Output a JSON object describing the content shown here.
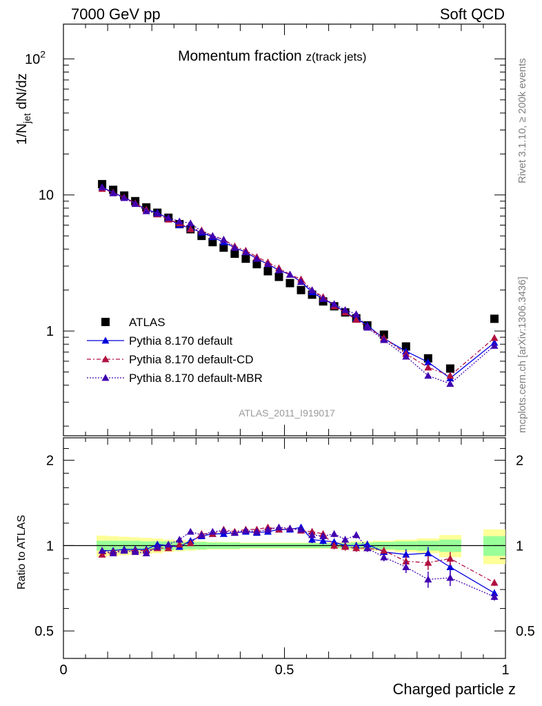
{
  "header": {
    "left": "7000 GeV pp",
    "right": "Soft QCD"
  },
  "side_labels": {
    "rivet": "Rivet 3.1.10, ≥ 200k events",
    "source": "mcplots.cern.ch [arXiv:1306.3436]"
  },
  "colors": {
    "data": "#000000",
    "default": "#0000dd",
    "cd": "#b01040",
    "mbr": "#4000b0",
    "band_inner": "#99ff99",
    "band_outer": "#ffff99",
    "watermark": "#999999"
  },
  "chart_data": {
    "type": "scatter",
    "title_main": "Momentum fraction ",
    "title_sub": "z(track jets)",
    "ylabel_main": "1/N",
    "ylabel_sub": "jet",
    "ylabel_rest": " dN/dz",
    "ratio_ylabel": "Ratio to ATLAS",
    "xlabel": "Charged particle z",
    "analysis_id": "ATLAS_2011_I919017",
    "xlim": [
      0,
      1
    ],
    "ylim_log": [
      0.17,
      180
    ],
    "ratio_ylim": [
      0.4,
      2.4
    ],
    "xticks": [
      {
        "value": 0,
        "label": "0"
      },
      {
        "value": 0.5,
        "label": "0.5"
      },
      {
        "value": 1,
        "label": "1"
      }
    ],
    "yticks_main": [
      {
        "value": 1,
        "label": "1"
      },
      {
        "value": 10,
        "label": "10"
      },
      {
        "value": 100,
        "label": "10",
        "sup": "2"
      }
    ],
    "yticks_ratio": [
      {
        "value": 0.5,
        "label": "0.5"
      },
      {
        "value": 1,
        "label": "1"
      },
      {
        "value": 2,
        "label": "2"
      }
    ],
    "legend": [
      "ATLAS",
      "Pythia 8.170 default",
      "Pythia 8.170 default-CD",
      "Pythia 8.170 default-MBR"
    ],
    "x": [
      0.0875,
      0.1125,
      0.1375,
      0.1625,
      0.1875,
      0.2125,
      0.2375,
      0.2625,
      0.2875,
      0.3125,
      0.3375,
      0.3625,
      0.3875,
      0.4125,
      0.4375,
      0.4625,
      0.4875,
      0.5125,
      0.5375,
      0.5625,
      0.5875,
      0.6125,
      0.6375,
      0.6625,
      0.6875,
      0.725,
      0.775,
      0.825,
      0.875,
      0.975
    ],
    "band_edges": [
      0.075,
      0.1,
      0.125,
      0.15,
      0.175,
      0.2,
      0.225,
      0.25,
      0.275,
      0.3,
      0.325,
      0.35,
      0.375,
      0.4,
      0.425,
      0.45,
      0.475,
      0.5,
      0.525,
      0.55,
      0.575,
      0.6,
      0.625,
      0.65,
      0.675,
      0.7,
      0.75,
      0.8,
      0.85,
      0.9,
      0.95,
      1.0
    ],
    "band_inner": [
      0.04,
      0.04,
      0.04,
      0.04,
      0.035,
      0.035,
      0.035,
      0.03,
      0.03,
      0.03,
      0.025,
      0.025,
      0.025,
      0.02,
      0.02,
      0.02,
      0.02,
      0.02,
      0.02,
      0.02,
      0.02,
      0.02,
      0.02,
      0.025,
      0.025,
      0.03,
      0.035,
      0.04,
      0.05,
      0,
      0.08
    ],
    "band_outer": [
      0.085,
      0.08,
      0.075,
      0.07,
      0.065,
      0.06,
      0.05,
      0.045,
      0.04,
      0.035,
      0.03,
      0.03,
      0.03,
      0.025,
      0.025,
      0.025,
      0.025,
      0.025,
      0.025,
      0.025,
      0.025,
      0.025,
      0.03,
      0.035,
      0.035,
      0.04,
      0.05,
      0.06,
      0.09,
      0,
      0.14
    ],
    "series": [
      {
        "name": "ATLAS",
        "style": "data",
        "values": [
          12,
          10.9,
          9.9,
          9.0,
          8.1,
          7.4,
          6.8,
          6.1,
          5.6,
          5.0,
          4.5,
          4.1,
          3.7,
          3.4,
          3.1,
          2.75,
          2.5,
          2.25,
          2.0,
          1.85,
          1.65,
          1.52,
          1.37,
          1.24,
          1.1,
          0.94,
          0.77,
          0.63,
          0.53,
          1.23
        ]
      },
      {
        "name": "Pythia 8.170 default",
        "style": "default",
        "values": [
          11.4,
          10.4,
          9.6,
          8.7,
          7.8,
          7.4,
          6.7,
          6.0,
          5.7,
          5.3,
          4.9,
          4.5,
          4.1,
          3.8,
          3.4,
          3.1,
          2.8,
          2.6,
          2.3,
          1.93,
          1.72,
          1.56,
          1.37,
          1.24,
          1.1,
          0.88,
          0.71,
          0.59,
          0.45,
          0.82
        ],
        "errors": [
          0.02,
          0.02,
          0.02,
          0.02,
          0.02,
          0.02,
          0.02,
          0.02,
          0.02,
          0.02,
          0.02,
          0.02,
          0.02,
          0.02,
          0.02,
          0.02,
          0.02,
          0.02,
          0.02,
          0.03,
          0.03,
          0.03,
          0.03,
          0.03,
          0.03,
          0.03,
          0.04,
          0.05,
          0.05,
          0.02
        ]
      },
      {
        "name": "Pythia 8.170 default-CD",
        "style": "cd",
        "values": [
          11.1,
          10.4,
          9.6,
          8.7,
          7.8,
          7.2,
          6.6,
          6.2,
          5.6,
          5.5,
          5.0,
          4.7,
          4.2,
          3.9,
          3.5,
          3.2,
          2.9,
          2.6,
          2.4,
          2.0,
          1.78,
          1.52,
          1.37,
          1.21,
          1.07,
          0.89,
          0.68,
          0.54,
          0.47,
          0.89
        ],
        "errors": [
          0.02,
          0.02,
          0.02,
          0.02,
          0.02,
          0.02,
          0.02,
          0.02,
          0.02,
          0.02,
          0.02,
          0.02,
          0.02,
          0.02,
          0.02,
          0.02,
          0.02,
          0.02,
          0.02,
          0.03,
          0.03,
          0.03,
          0.03,
          0.03,
          0.03,
          0.03,
          0.04,
          0.05,
          0.05,
          0.02
        ]
      },
      {
        "name": "Pythia 8.170 default-MBR",
        "style": "mbr",
        "values": [
          11.4,
          10.3,
          9.5,
          8.6,
          7.6,
          7.3,
          6.8,
          6.4,
          6.2,
          5.4,
          5.0,
          4.7,
          4.1,
          3.8,
          3.4,
          3.1,
          2.8,
          2.6,
          2.3,
          2.0,
          1.73,
          1.58,
          1.43,
          1.33,
          1.06,
          0.86,
          0.65,
          0.47,
          0.41,
          0.78
        ],
        "errors": [
          0.02,
          0.02,
          0.02,
          0.02,
          0.02,
          0.02,
          0.02,
          0.02,
          0.02,
          0.02,
          0.02,
          0.02,
          0.02,
          0.02,
          0.02,
          0.02,
          0.02,
          0.02,
          0.02,
          0.03,
          0.03,
          0.03,
          0.03,
          0.03,
          0.03,
          0.03,
          0.04,
          0.05,
          0.05,
          0.02
        ]
      }
    ],
    "ratio_series": [
      {
        "name": "Pythia 8.170 default",
        "style": "default",
        "values": [
          0.96,
          0.96,
          0.97,
          0.97,
          0.97,
          1.01,
          1.0,
          0.99,
          1.04,
          1.08,
          1.1,
          1.1,
          1.11,
          1.12,
          1.11,
          1.12,
          1.14,
          1.14,
          1.16,
          1.05,
          1.04,
          1.03,
          1.0,
          1.0,
          1.01,
          0.95,
          0.93,
          0.94,
          0.84,
          0.68
        ],
        "errors": [
          0.02,
          0.02,
          0.02,
          0.02,
          0.02,
          0.02,
          0.02,
          0.02,
          0.02,
          0.02,
          0.02,
          0.02,
          0.02,
          0.02,
          0.02,
          0.02,
          0.02,
          0.02,
          0.02,
          0.03,
          0.03,
          0.03,
          0.03,
          0.03,
          0.03,
          0.03,
          0.04,
          0.05,
          0.05,
          0.02
        ]
      },
      {
        "name": "Pythia 8.170 default-CD",
        "style": "cd",
        "values": [
          0.93,
          0.95,
          0.96,
          0.96,
          0.96,
          0.98,
          0.98,
          1.01,
          1.02,
          1.1,
          1.1,
          1.14,
          1.12,
          1.14,
          1.14,
          1.16,
          1.14,
          1.15,
          1.13,
          1.12,
          1.1,
          1.0,
          0.99,
          0.98,
          0.98,
          0.96,
          0.88,
          0.87,
          0.9,
          0.74
        ],
        "errors": [
          0.02,
          0.02,
          0.02,
          0.02,
          0.02,
          0.02,
          0.02,
          0.02,
          0.02,
          0.02,
          0.02,
          0.02,
          0.02,
          0.02,
          0.02,
          0.02,
          0.02,
          0.02,
          0.02,
          0.03,
          0.03,
          0.03,
          0.03,
          0.03,
          0.03,
          0.03,
          0.04,
          0.05,
          0.05,
          0.02
        ]
      },
      {
        "name": "Pythia 8.170 default-MBR",
        "style": "mbr",
        "values": [
          0.96,
          0.94,
          0.96,
          0.95,
          0.94,
          0.99,
          1.01,
          1.05,
          1.12,
          1.09,
          1.12,
          1.13,
          1.11,
          1.13,
          1.12,
          1.14,
          1.16,
          1.15,
          1.14,
          1.09,
          1.08,
          1.1,
          1.05,
          1.09,
          0.98,
          0.91,
          0.84,
          0.76,
          0.77,
          0.66
        ],
        "errors": [
          0.02,
          0.02,
          0.02,
          0.02,
          0.02,
          0.02,
          0.02,
          0.02,
          0.02,
          0.02,
          0.02,
          0.02,
          0.02,
          0.02,
          0.02,
          0.02,
          0.02,
          0.02,
          0.02,
          0.03,
          0.03,
          0.03,
          0.03,
          0.03,
          0.03,
          0.03,
          0.04,
          0.05,
          0.05,
          0.02
        ]
      }
    ]
  }
}
